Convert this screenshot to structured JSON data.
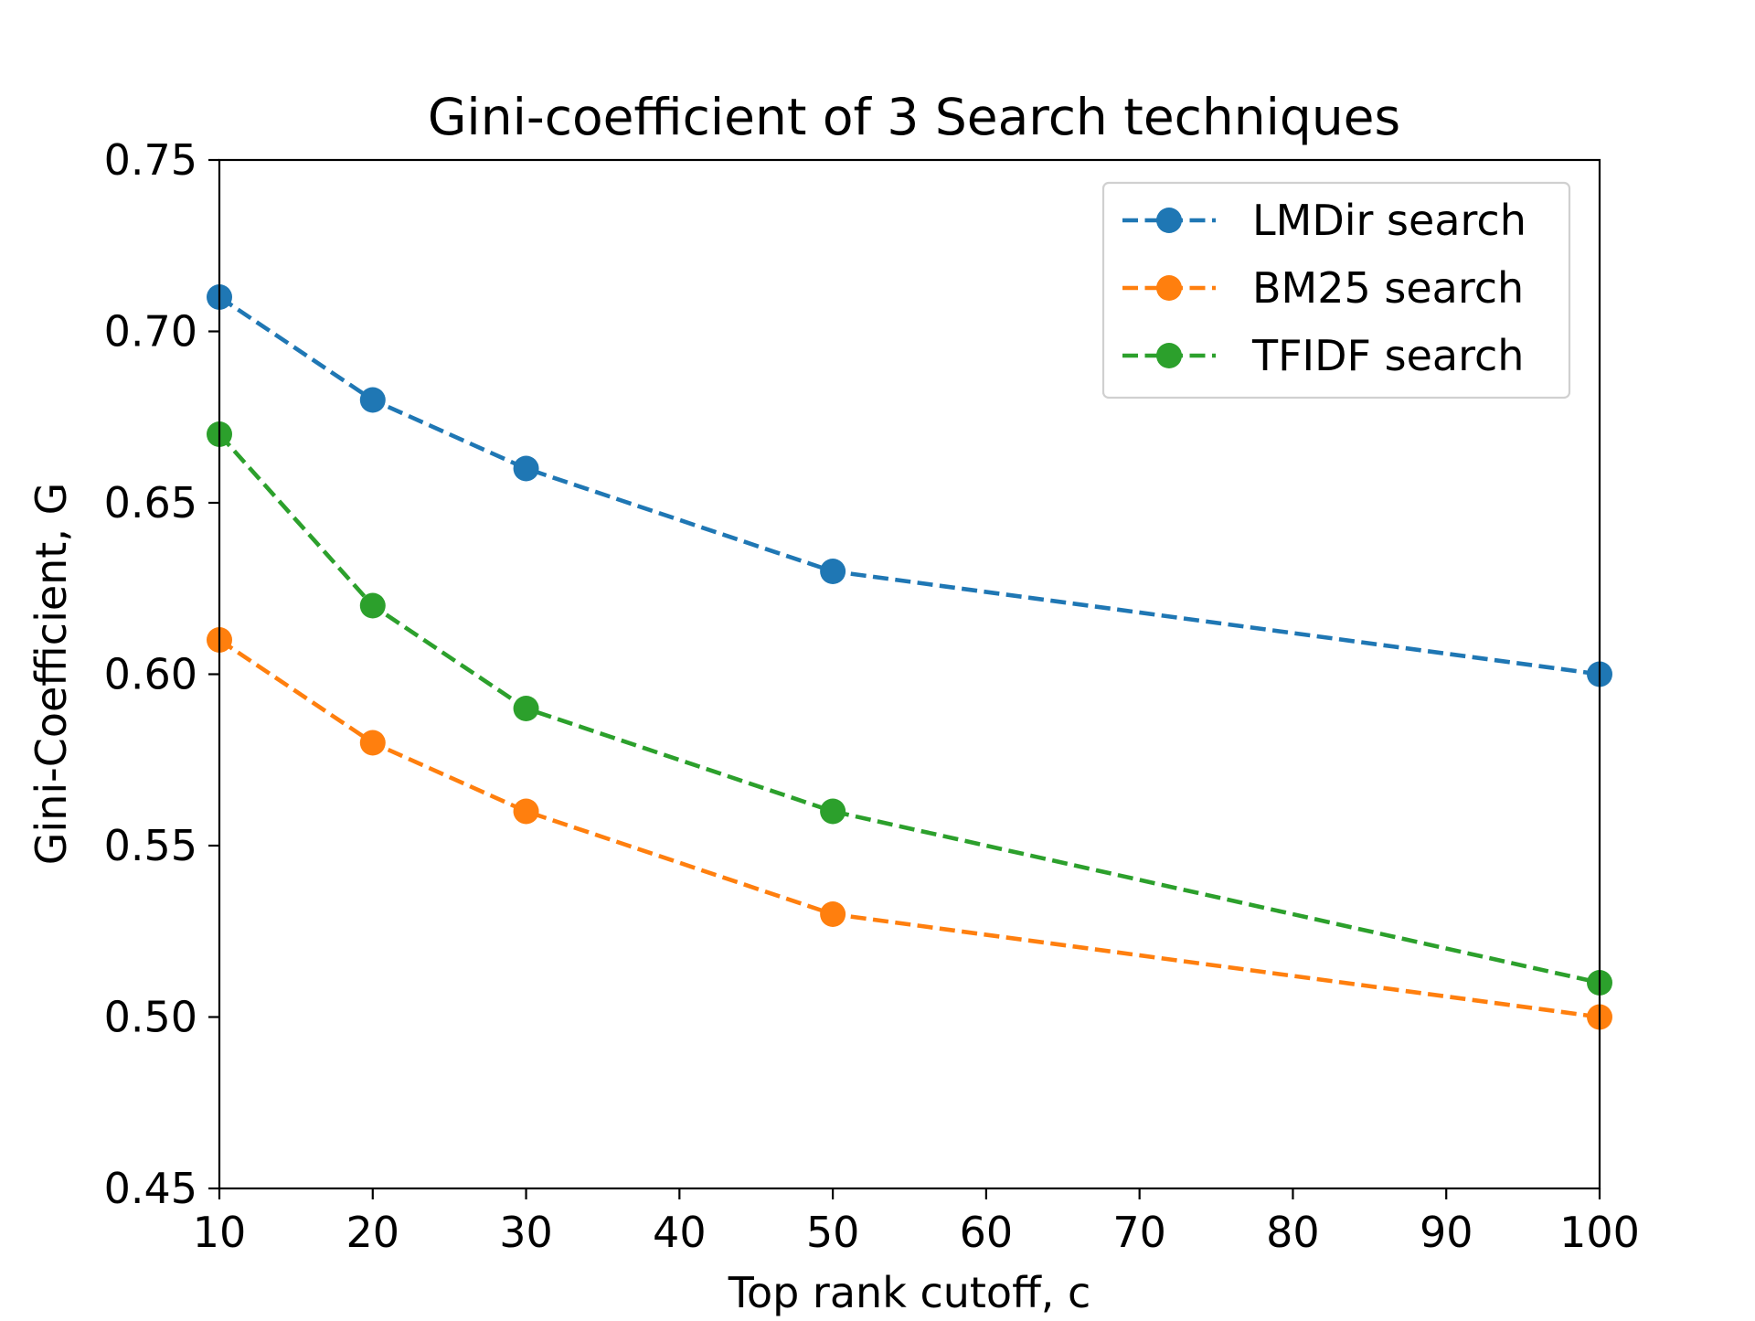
{
  "chart_data": {
    "type": "line",
    "title": "Gini-coefficient of 3 Search techniques",
    "xlabel": "Top rank cutoff, c",
    "ylabel": "Gini-Coefficient, G",
    "xlim": [
      10,
      100
    ],
    "ylim": [
      0.45,
      0.75
    ],
    "x_ticks": [
      10,
      20,
      30,
      40,
      50,
      60,
      70,
      80,
      90,
      100
    ],
    "x_tick_labels": [
      "10",
      "20",
      "30",
      "40",
      "50",
      "60",
      "70",
      "80",
      "90",
      "100"
    ],
    "y_ticks": [
      0.45,
      0.5,
      0.55,
      0.6,
      0.65,
      0.7,
      0.75
    ],
    "y_tick_labels": [
      "0.45",
      "0.50",
      "0.55",
      "0.60",
      "0.65",
      "0.70",
      "0.75"
    ],
    "grid": false,
    "legend_position": "top-right",
    "line_style": "dashed",
    "marker": "circle",
    "series": [
      {
        "name": "LMDir search",
        "color": "#1f77b4",
        "x": [
          10,
          20,
          30,
          50,
          100
        ],
        "y": [
          0.71,
          0.68,
          0.66,
          0.63,
          0.6
        ]
      },
      {
        "name": "BM25 search",
        "color": "#ff7f0e",
        "x": [
          10,
          20,
          30,
          50,
          100
        ],
        "y": [
          0.61,
          0.58,
          0.56,
          0.53,
          0.5
        ]
      },
      {
        "name": "TFIDF search",
        "color": "#2ca02c",
        "x": [
          10,
          20,
          30,
          50,
          100
        ],
        "y": [
          0.67,
          0.62,
          0.59,
          0.56,
          0.51
        ]
      }
    ]
  }
}
